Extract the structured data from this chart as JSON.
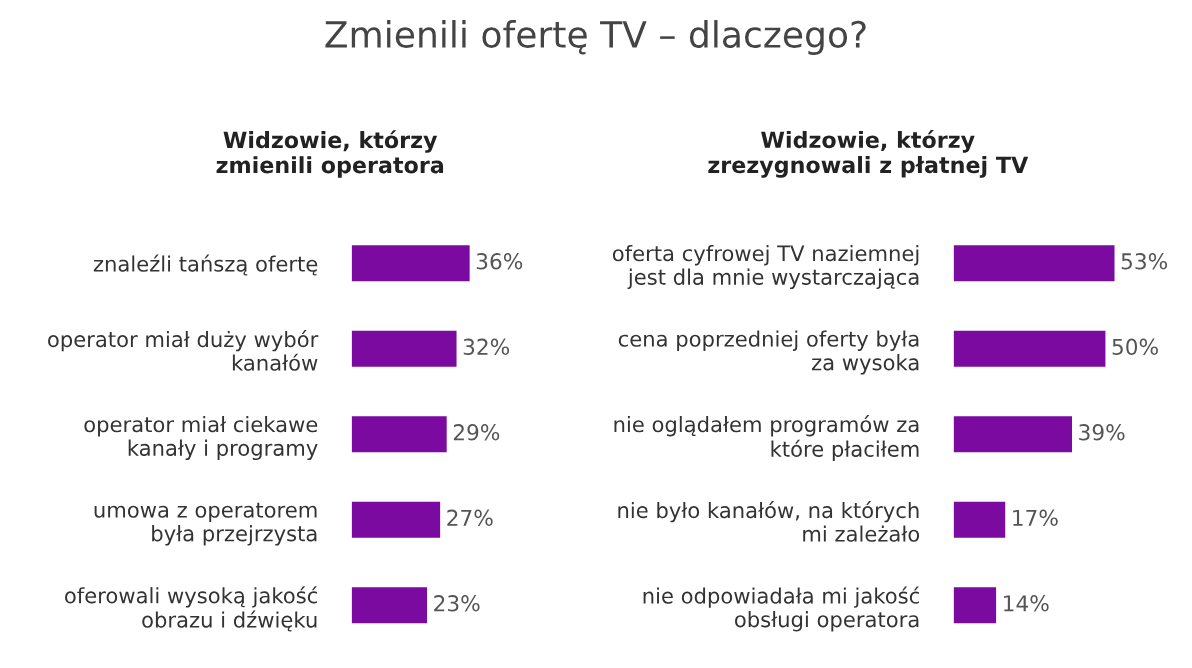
{
  "chart_data": [
    {
      "type": "bar",
      "orientation": "horizontal",
      "title": "Zmienili ofertę TV – dlaczego?",
      "subtitle": "Widzowie, którzy\nzmienili operatora",
      "categories": [
        "znaleźli tańszą ofertę",
        "operator miał duży wybór\nkanałów",
        "operator miał ciekawe\nkanały i programy",
        "umowa z operatorem\nbyła przejrzysta",
        "oferowali wysoką jakość\nobrazu i dźwięku"
      ],
      "values": [
        36,
        32,
        29,
        27,
        23
      ],
      "value_labels": [
        "36%",
        "32%",
        "29%",
        "27%",
        "23%"
      ],
      "color": "#7b0aa0"
    },
    {
      "type": "bar",
      "orientation": "horizontal",
      "subtitle": "Widzowie, którzy\nzrezygnowali z płatnej TV",
      "categories": [
        "oferta cyfrowej TV naziemnej\njest dla mnie wystarczająca",
        "cena poprzedniej oferty była\nza wysoka",
        "nie oglądałem programów za\nktóre płaciłem",
        "nie było kanałów, na których\nmi zależało",
        "nie odpowiadała mi jakość\nobsługi operatora"
      ],
      "values": [
        53,
        50,
        39,
        17,
        14
      ],
      "value_labels": [
        "53%",
        "50%",
        "39%",
        "17%",
        "14%"
      ],
      "color": "#7b0aa0"
    }
  ]
}
